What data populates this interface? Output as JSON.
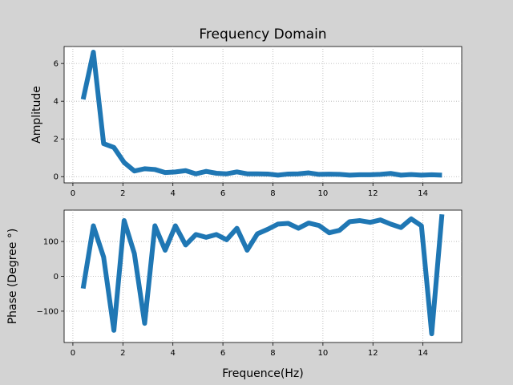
{
  "chart_data": [
    {
      "type": "line",
      "title": "Frequency Domain",
      "xlabel": "",
      "ylabel": "Amplitude",
      "xlim": [
        -0.35,
        15.55
      ],
      "ylim": [
        -0.33,
        6.9
      ],
      "xticks": [
        0,
        2,
        4,
        6,
        8,
        10,
        12,
        14
      ],
      "yticks": [
        0,
        2,
        4,
        6
      ],
      "grid": true,
      "color": "#1f77b4",
      "series": [
        {
          "x": [
            0.41,
            0.82,
            1.23,
            1.64,
            2.05,
            2.46,
            2.87,
            3.28,
            3.69,
            4.1,
            4.51,
            4.92,
            5.33,
            5.74,
            6.15,
            6.56,
            6.97,
            7.38,
            7.79,
            8.2,
            8.61,
            9.02,
            9.43,
            9.84,
            10.25,
            10.66,
            11.07,
            11.48,
            11.89,
            12.3,
            12.71,
            13.12,
            13.53,
            13.94,
            14.35,
            14.76
          ],
          "values": [
            4.1,
            6.6,
            1.75,
            1.55,
            0.75,
            0.3,
            0.42,
            0.38,
            0.22,
            0.25,
            0.32,
            0.15,
            0.28,
            0.18,
            0.15,
            0.25,
            0.15,
            0.15,
            0.14,
            0.08,
            0.14,
            0.15,
            0.2,
            0.12,
            0.13,
            0.12,
            0.08,
            0.1,
            0.1,
            0.12,
            0.17,
            0.08,
            0.11,
            0.08,
            0.1,
            0.08
          ]
        }
      ]
    },
    {
      "type": "line",
      "title": "",
      "xlabel": "Frequence(Hz)",
      "ylabel": "Phase (Degree °)",
      "xlim": [
        -0.35,
        15.55
      ],
      "ylim": [
        -190,
        190
      ],
      "xticks": [
        0,
        2,
        4,
        6,
        8,
        10,
        12,
        14
      ],
      "yticks": [
        -100,
        0,
        100
      ],
      "yticklabels": [
        "−100",
        "0",
        "100"
      ],
      "grid": true,
      "color": "#1f77b4",
      "series": [
        {
          "x": [
            0.41,
            0.82,
            1.23,
            1.64,
            2.05,
            2.46,
            2.87,
            3.28,
            3.69,
            4.1,
            4.51,
            4.92,
            5.33,
            5.74,
            6.15,
            6.56,
            6.97,
            7.38,
            7.79,
            8.2,
            8.61,
            9.02,
            9.43,
            9.84,
            10.25,
            10.66,
            11.07,
            11.48,
            11.89,
            12.3,
            12.71,
            13.12,
            13.53,
            13.94,
            14.35,
            14.76
          ],
          "values": [
            -35,
            145,
            55,
            -155,
            160,
            65,
            -135,
            145,
            75,
            145,
            90,
            120,
            112,
            120,
            105,
            138,
            75,
            122,
            135,
            150,
            152,
            138,
            153,
            146,
            125,
            132,
            157,
            160,
            155,
            162,
            150,
            140,
            165,
            145,
            -165,
            178
          ]
        }
      ]
    }
  ]
}
